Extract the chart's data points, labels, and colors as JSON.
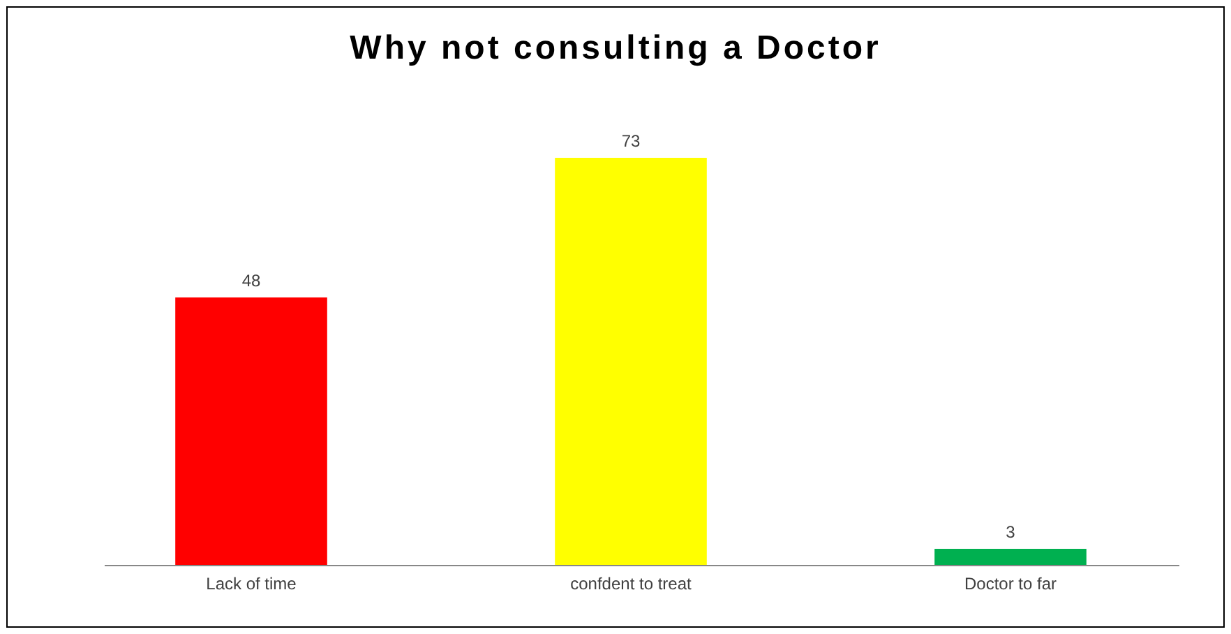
{
  "chart_data": {
    "type": "bar",
    "title": "Why not consulting a Doctor",
    "categories": [
      "Lack of time",
      "confdent to treat",
      "Doctor to far"
    ],
    "values": [
      48,
      73,
      3
    ],
    "colors": [
      "#ff0000",
      "#ffff00",
      "#00b050"
    ],
    "data_labels": true
  }
}
